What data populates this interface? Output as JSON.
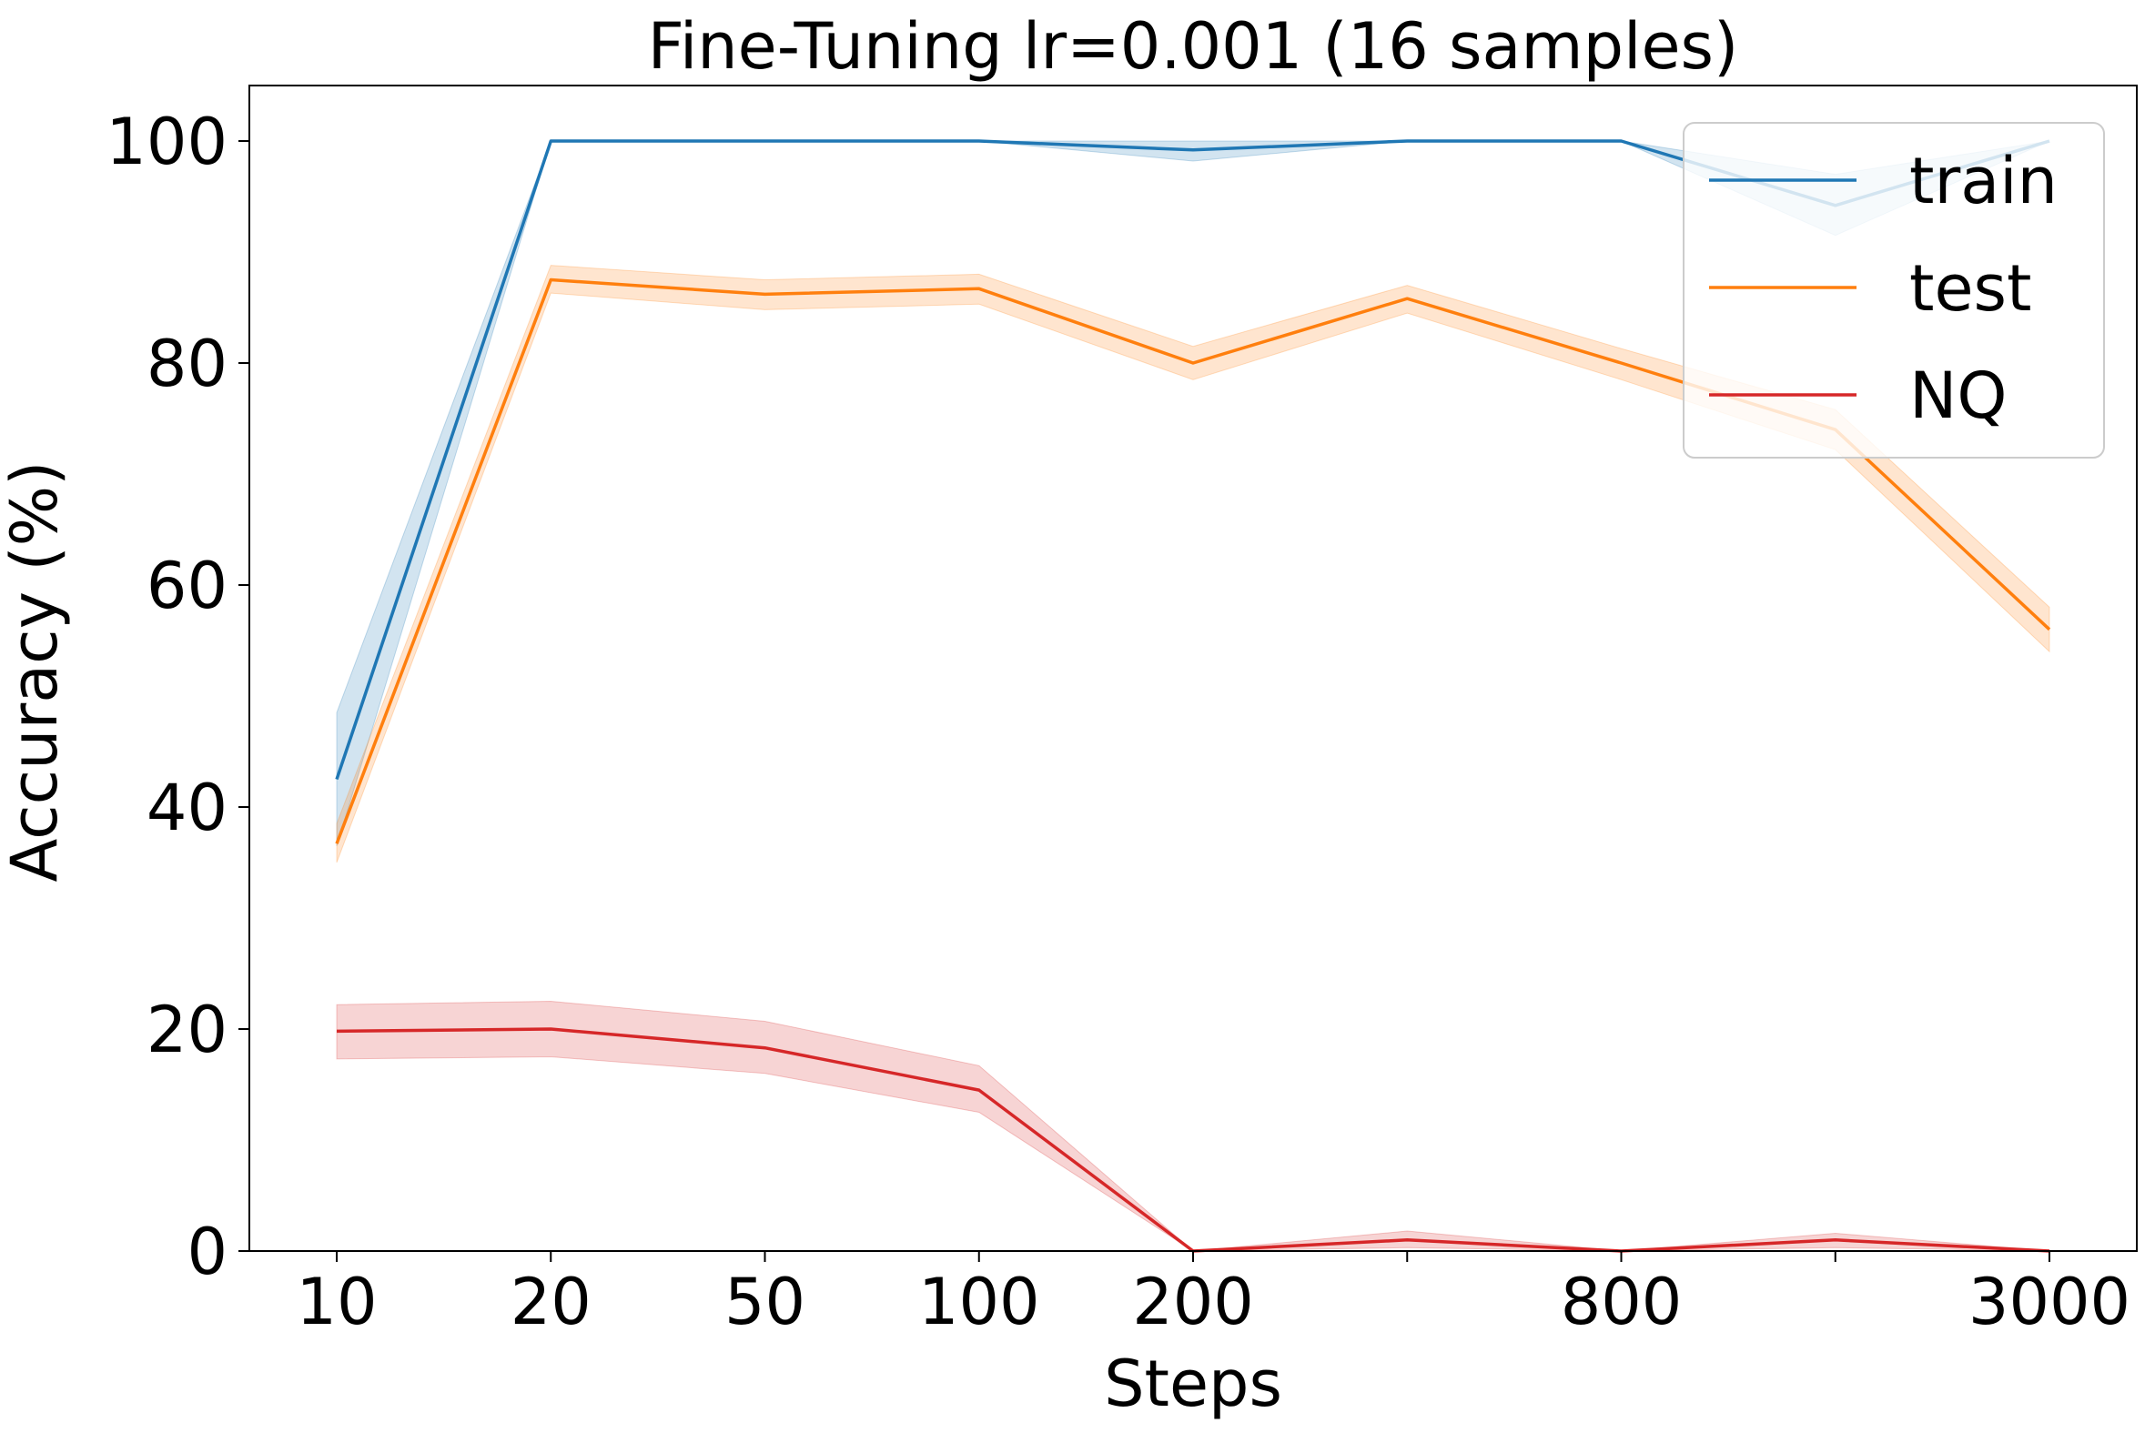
{
  "chart_data": {
    "type": "line",
    "title": "Fine-Tuning lr=0.001  (16 samples)",
    "xlabel": "Steps",
    "ylabel": "Accuracy (%)",
    "x_tick_labels": [
      "10",
      "20",
      "50",
      "100",
      "200",
      "",
      "800",
      "",
      "3000"
    ],
    "y_ticks": [
      0,
      20,
      40,
      60,
      80,
      100
    ],
    "ylim": [
      0,
      105
    ],
    "grid": false,
    "legend_position": "top-right",
    "series": [
      {
        "name": "train",
        "color": "#1f77b4",
        "values": [
          42.5,
          100,
          100,
          100,
          99.2,
          100,
          100,
          94.2,
          100
        ],
        "band_low": [
          36.5,
          100,
          100,
          100,
          98.2,
          100,
          100,
          91.5,
          100
        ],
        "band_high": [
          48.5,
          100,
          100,
          100,
          100,
          100,
          100,
          97,
          100
        ]
      },
      {
        "name": "test",
        "color": "#ff7f0e",
        "values": [
          36.7,
          87.5,
          86.2,
          86.7,
          80.0,
          85.8,
          80.0,
          74.0,
          56.0
        ],
        "band_low": [
          35.0,
          86.3,
          84.8,
          85.3,
          78.5,
          84.5,
          78.5,
          72.2,
          54.0
        ],
        "band_high": [
          38.5,
          88.8,
          87.5,
          88.0,
          81.5,
          87.0,
          81.3,
          75.8,
          58.0
        ]
      },
      {
        "name": "NQ",
        "color": "#d62728",
        "values": [
          19.8,
          20.0,
          18.3,
          14.5,
          0,
          1.0,
          0,
          1.0,
          0
        ],
        "band_low": [
          17.3,
          17.5,
          16.0,
          12.5,
          0,
          0.3,
          0,
          0.3,
          0
        ],
        "band_high": [
          22.2,
          22.5,
          20.7,
          16.7,
          0,
          1.8,
          0,
          1.6,
          0
        ]
      }
    ]
  }
}
